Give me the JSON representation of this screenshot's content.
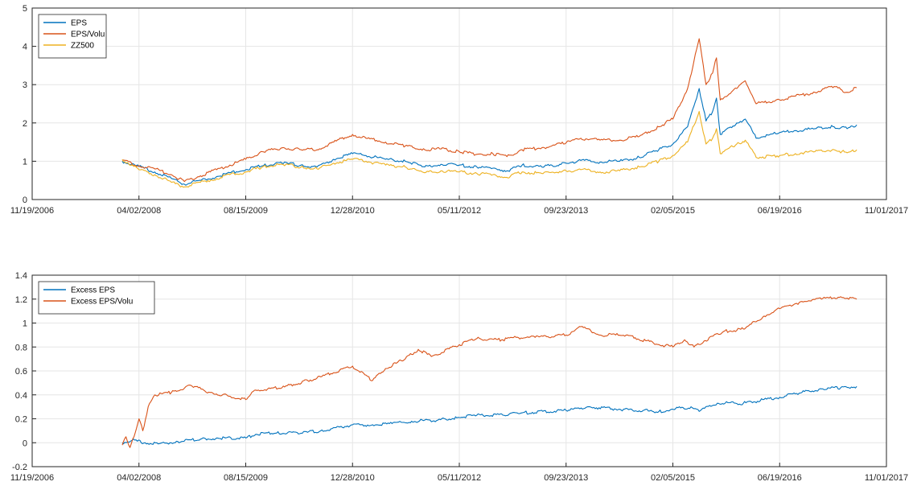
{
  "chart_data": [
    {
      "type": "line",
      "title": "",
      "xlabel": "",
      "ylabel": "",
      "xlim": [
        "11/19/2006",
        "11/01/2017"
      ],
      "ylim": [
        0,
        5
      ],
      "x_ticks": [
        "11/19/2006",
        "04/02/2008",
        "08/15/2009",
        "12/28/2010",
        "05/11/2012",
        "09/23/2013",
        "02/05/2015",
        "06/19/2016",
        "11/01/2017"
      ],
      "y_ticks": [
        "0",
        "1",
        "2",
        "3",
        "4",
        "5"
      ],
      "grid": true,
      "legend_position": "top-left",
      "series": [
        {
          "name": "EPS",
          "color": "#0072BD",
          "points": [
            [
              "01/15/2008",
              1.0
            ],
            [
              "04/02/2008",
              0.86
            ],
            [
              "06/15/2008",
              0.72
            ],
            [
              "09/01/2008",
              0.55
            ],
            [
              "11/01/2008",
              0.4
            ],
            [
              "01/15/2009",
              0.5
            ],
            [
              "04/01/2009",
              0.6
            ],
            [
              "06/01/2009",
              0.7
            ],
            [
              "08/15/2009",
              0.78
            ],
            [
              "11/01/2009",
              0.88
            ],
            [
              "02/01/2010",
              0.95
            ],
            [
              "05/01/2010",
              0.9
            ],
            [
              "07/15/2010",
              0.85
            ],
            [
              "10/01/2010",
              1.05
            ],
            [
              "12/28/2010",
              1.2
            ],
            [
              "03/01/2011",
              1.15
            ],
            [
              "06/01/2011",
              1.05
            ],
            [
              "09/01/2011",
              1.0
            ],
            [
              "12/01/2011",
              0.85
            ],
            [
              "02/15/2012",
              0.92
            ],
            [
              "05/11/2012",
              0.9
            ],
            [
              "08/01/2012",
              0.85
            ],
            [
              "10/15/2012",
              0.82
            ],
            [
              "12/20/2012",
              0.75
            ],
            [
              "03/01/2013",
              0.9
            ],
            [
              "06/01/2013",
              0.85
            ],
            [
              "09/23/2013",
              0.95
            ],
            [
              "12/01/2013",
              1.02
            ],
            [
              "03/01/2014",
              0.98
            ],
            [
              "06/01/2014",
              1.0
            ],
            [
              "09/01/2014",
              1.1
            ],
            [
              "12/01/2014",
              1.3
            ],
            [
              "02/05/2015",
              1.45
            ],
            [
              "04/15/2015",
              1.9
            ],
            [
              "06/08/2015",
              2.9
            ],
            [
              "07/10/2015",
              2.05
            ],
            [
              "08/10/2015",
              2.3
            ],
            [
              "08/28/2015",
              2.65
            ],
            [
              "09/15/2015",
              1.7
            ],
            [
              "12/01/2015",
              2.0
            ],
            [
              "01/10/2016",
              2.1
            ],
            [
              "03/01/2016",
              1.6
            ],
            [
              "06/19/2016",
              1.75
            ],
            [
              "09/01/2016",
              1.8
            ],
            [
              "12/01/2016",
              1.85
            ],
            [
              "03/01/2017",
              1.9
            ],
            [
              "05/01/2017",
              1.85
            ],
            [
              "06/15/2017",
              1.95
            ]
          ]
        },
        {
          "name": "EPS/Volu",
          "color": "#D95319",
          "points": [
            [
              "01/15/2008",
              1.02
            ],
            [
              "04/02/2008",
              0.88
            ],
            [
              "06/15/2008",
              0.8
            ],
            [
              "09/01/2008",
              0.65
            ],
            [
              "11/01/2008",
              0.47
            ],
            [
              "01/15/2009",
              0.62
            ],
            [
              "04/01/2009",
              0.78
            ],
            [
              "06/01/2009",
              0.9
            ],
            [
              "08/15/2009",
              1.05
            ],
            [
              "11/01/2009",
              1.25
            ],
            [
              "02/01/2010",
              1.35
            ],
            [
              "05/01/2010",
              1.3
            ],
            [
              "07/15/2010",
              1.3
            ],
            [
              "10/01/2010",
              1.5
            ],
            [
              "12/28/2010",
              1.7
            ],
            [
              "03/01/2011",
              1.6
            ],
            [
              "06/01/2011",
              1.5
            ],
            [
              "09/01/2011",
              1.4
            ],
            [
              "12/01/2011",
              1.3
            ],
            [
              "02/15/2012",
              1.32
            ],
            [
              "05/11/2012",
              1.25
            ],
            [
              "08/01/2012",
              1.18
            ],
            [
              "10/15/2012",
              1.2
            ],
            [
              "12/20/2012",
              1.12
            ],
            [
              "03/01/2013",
              1.3
            ],
            [
              "06/01/2013",
              1.35
            ],
            [
              "09/23/2013",
              1.48
            ],
            [
              "12/01/2013",
              1.6
            ],
            [
              "03/01/2014",
              1.55
            ],
            [
              "06/01/2014",
              1.55
            ],
            [
              "09/01/2014",
              1.65
            ],
            [
              "12/01/2014",
              1.9
            ],
            [
              "02/05/2015",
              2.1
            ],
            [
              "04/15/2015",
              2.9
            ],
            [
              "06/08/2015",
              4.2
            ],
            [
              "07/10/2015",
              3.0
            ],
            [
              "08/10/2015",
              3.3
            ],
            [
              "08/28/2015",
              3.7
            ],
            [
              "09/15/2015",
              2.6
            ],
            [
              "12/01/2015",
              2.9
            ],
            [
              "01/10/2016",
              3.1
            ],
            [
              "03/01/2016",
              2.5
            ],
            [
              "06/19/2016",
              2.6
            ],
            [
              "09/01/2016",
              2.7
            ],
            [
              "12/01/2016",
              2.8
            ],
            [
              "03/01/2017",
              2.95
            ],
            [
              "05/01/2017",
              2.8
            ],
            [
              "06/15/2017",
              2.92
            ]
          ]
        },
        {
          "name": "ZZ500",
          "color": "#EDB120",
          "points": [
            [
              "01/15/2008",
              1.05
            ],
            [
              "04/02/2008",
              0.78
            ],
            [
              "06/15/2008",
              0.65
            ],
            [
              "09/01/2008",
              0.45
            ],
            [
              "11/01/2008",
              0.33
            ],
            [
              "01/15/2009",
              0.45
            ],
            [
              "04/01/2009",
              0.55
            ],
            [
              "06/01/2009",
              0.65
            ],
            [
              "08/15/2009",
              0.72
            ],
            [
              "11/01/2009",
              0.85
            ],
            [
              "02/01/2010",
              0.92
            ],
            [
              "05/01/2010",
              0.85
            ],
            [
              "07/15/2010",
              0.8
            ],
            [
              "10/01/2010",
              0.95
            ],
            [
              "12/28/2010",
              1.05
            ],
            [
              "03/01/2011",
              1.0
            ],
            [
              "06/01/2011",
              0.9
            ],
            [
              "09/01/2011",
              0.85
            ],
            [
              "12/01/2011",
              0.7
            ],
            [
              "02/15/2012",
              0.75
            ],
            [
              "05/11/2012",
              0.72
            ],
            [
              "08/01/2012",
              0.68
            ],
            [
              "10/15/2012",
              0.65
            ],
            [
              "12/20/2012",
              0.58
            ],
            [
              "03/01/2013",
              0.72
            ],
            [
              "06/01/2013",
              0.68
            ],
            [
              "09/23/2013",
              0.75
            ],
            [
              "12/01/2013",
              0.78
            ],
            [
              "03/01/2014",
              0.72
            ],
            [
              "06/01/2014",
              0.75
            ],
            [
              "09/01/2014",
              0.85
            ],
            [
              "12/01/2014",
              1.0
            ],
            [
              "02/05/2015",
              1.15
            ],
            [
              "04/15/2015",
              1.5
            ],
            [
              "06/08/2015",
              2.3
            ],
            [
              "07/10/2015",
              1.45
            ],
            [
              "08/10/2015",
              1.6
            ],
            [
              "08/28/2015",
              1.85
            ],
            [
              "09/15/2015",
              1.2
            ],
            [
              "12/01/2015",
              1.45
            ],
            [
              "01/10/2016",
              1.55
            ],
            [
              "03/01/2016",
              1.1
            ],
            [
              "06/19/2016",
              1.15
            ],
            [
              "09/01/2016",
              1.2
            ],
            [
              "12/01/2016",
              1.25
            ],
            [
              "03/01/2017",
              1.3
            ],
            [
              "05/01/2017",
              1.22
            ],
            [
              "06/15/2017",
              1.3
            ]
          ]
        }
      ]
    },
    {
      "type": "line",
      "title": "",
      "xlabel": "",
      "ylabel": "",
      "xlim": [
        "11/19/2006",
        "11/01/2017"
      ],
      "ylim": [
        -0.2,
        1.4
      ],
      "x_ticks": [
        "11/19/2006",
        "04/02/2008",
        "08/15/2009",
        "12/28/2010",
        "05/11/2012",
        "09/23/2013",
        "02/05/2015",
        "06/19/2016",
        "11/01/2017"
      ],
      "y_ticks": [
        "-0.2",
        "0",
        "0.2",
        "0.4",
        "0.6",
        "0.8",
        "1",
        "1.2",
        "1.4"
      ],
      "grid": true,
      "legend_position": "top-left",
      "series": [
        {
          "name": "Excess EPS",
          "color": "#0072BD",
          "points": [
            [
              "01/15/2008",
              0.0
            ],
            [
              "03/01/2008",
              0.02
            ],
            [
              "05/01/2008",
              0.0
            ],
            [
              "07/01/2008",
              -0.01
            ],
            [
              "10/01/2008",
              0.01
            ],
            [
              "01/15/2009",
              0.03
            ],
            [
              "04/01/2009",
              0.04
            ],
            [
              "08/15/2009",
              0.04
            ],
            [
              "10/01/2009",
              0.07
            ],
            [
              "01/01/2010",
              0.08
            ],
            [
              "05/01/2010",
              0.08
            ],
            [
              "08/01/2010",
              0.1
            ],
            [
              "12/28/2010",
              0.15
            ],
            [
              "04/01/2011",
              0.15
            ],
            [
              "07/01/2011",
              0.16
            ],
            [
              "10/01/2011",
              0.18
            ],
            [
              "02/01/2012",
              0.19
            ],
            [
              "05/11/2012",
              0.21
            ],
            [
              "08/01/2012",
              0.23
            ],
            [
              "12/01/2012",
              0.23
            ],
            [
              "03/01/2013",
              0.25
            ],
            [
              "09/23/2013",
              0.27
            ],
            [
              "01/01/2014",
              0.3
            ],
            [
              "06/01/2014",
              0.28
            ],
            [
              "12/01/2014",
              0.26
            ],
            [
              "02/05/2015",
              0.28
            ],
            [
              "05/01/2015",
              0.3
            ],
            [
              "06/15/2015",
              0.27
            ],
            [
              "09/01/2015",
              0.33
            ],
            [
              "01/01/2016",
              0.33
            ],
            [
              "06/19/2016",
              0.38
            ],
            [
              "10/01/2016",
              0.42
            ],
            [
              "01/01/2017",
              0.45
            ],
            [
              "04/01/2017",
              0.46
            ],
            [
              "06/15/2017",
              0.47
            ]
          ]
        },
        {
          "name": "Excess EPS/Volu",
          "color": "#D95319",
          "points": [
            [
              "01/15/2008",
              -0.02
            ],
            [
              "02/01/2008",
              0.05
            ],
            [
              "02/20/2008",
              -0.04
            ],
            [
              "03/10/2008",
              0.05
            ],
            [
              "04/02/2008",
              0.2
            ],
            [
              "04/20/2008",
              0.1
            ],
            [
              "05/15/2008",
              0.3
            ],
            [
              "06/15/2008",
              0.4
            ],
            [
              "09/01/2008",
              0.42
            ],
            [
              "12/01/2008",
              0.48
            ],
            [
              "03/01/2009",
              0.42
            ],
            [
              "08/15/2009",
              0.36
            ],
            [
              "10/01/2009",
              0.44
            ],
            [
              "02/01/2010",
              0.46
            ],
            [
              "06/01/2010",
              0.52
            ],
            [
              "08/01/2010",
              0.55
            ],
            [
              "12/28/2010",
              0.64
            ],
            [
              "04/01/2011",
              0.52
            ],
            [
              "06/01/2011",
              0.62
            ],
            [
              "09/01/2011",
              0.7
            ],
            [
              "11/01/2011",
              0.78
            ],
            [
              "01/01/2012",
              0.72
            ],
            [
              "05/11/2012",
              0.82
            ],
            [
              "08/01/2012",
              0.87
            ],
            [
              "12/01/2012",
              0.86
            ],
            [
              "02/01/2013",
              0.88
            ],
            [
              "05/01/2013",
              0.88
            ],
            [
              "09/23/2013",
              0.9
            ],
            [
              "12/01/2013",
              0.97
            ],
            [
              "03/01/2014",
              0.9
            ],
            [
              "07/01/2014",
              0.9
            ],
            [
              "12/01/2014",
              0.82
            ],
            [
              "02/05/2015",
              0.8
            ],
            [
              "04/01/2015",
              0.86
            ],
            [
              "05/15/2015",
              0.8
            ],
            [
              "07/01/2015",
              0.85
            ],
            [
              "10/01/2015",
              0.93
            ],
            [
              "01/01/2016",
              0.95
            ],
            [
              "04/01/2016",
              1.05
            ],
            [
              "06/19/2016",
              1.12
            ],
            [
              "10/01/2016",
              1.18
            ],
            [
              "01/01/2017",
              1.2
            ],
            [
              "04/01/2017",
              1.22
            ],
            [
              "06/15/2017",
              1.2
            ]
          ]
        }
      ]
    }
  ]
}
